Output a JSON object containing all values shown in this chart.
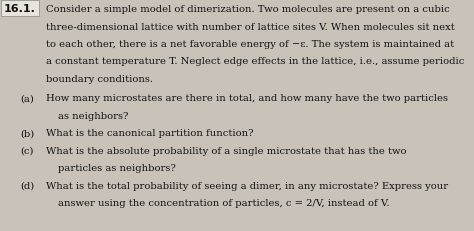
{
  "background_color": "#c8c2b8",
  "label": "16.1.",
  "body_fontsize": 7.2,
  "label_fontsize": 8.0,
  "lines": [
    "Consider a simple model of dimerization. Two molecules are present on a cubic",
    "three-dimensional lattice with number of lattice sites V. When molecules sit next",
    "to each other, there is a net favorable energy of −ε. The system is maintained at",
    "a constant temperature T. Neglect edge effects in the lattice, i.e., assume periodic",
    "boundary conditions."
  ],
  "parts": [
    {
      "label": "(a)",
      "lines": [
        "How many microstates are there in total, and how many have the two particles",
        "as neighbors?"
      ]
    },
    {
      "label": "(b)",
      "lines": [
        "What is the canonical partition function?"
      ]
    },
    {
      "label": "(c)",
      "lines": [
        "What is the absolute probability of a single microstate that has the two",
        "particles as neighbors?"
      ]
    },
    {
      "label": "(d)",
      "lines": [
        "What is the total probability of seeing a dimer, in any microstate? Express your",
        "answer using the concentration of particles, c = 2/V, instead of V."
      ]
    }
  ],
  "label_box_color": "#e8e4dc",
  "label_text_color": "#111111",
  "body_text_color": "#111111"
}
